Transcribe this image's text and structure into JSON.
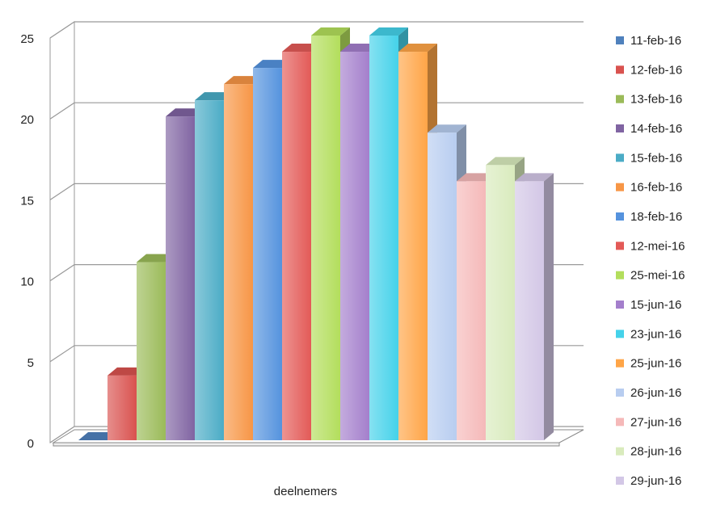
{
  "chart_data": {
    "type": "bar3d",
    "categories": [
      "deelnemers"
    ],
    "ylim": [
      0,
      25
    ],
    "yticks": [
      0,
      5,
      10,
      15,
      20,
      25
    ],
    "grid": true,
    "legend": "right",
    "series": [
      {
        "name": "11-feb-16",
        "color": "#4f81bd",
        "values": [
          0
        ]
      },
      {
        "name": "12-feb-16",
        "color": "#d9524f",
        "values": [
          4
        ]
      },
      {
        "name": "13-feb-16",
        "color": "#9bbb59",
        "values": [
          11
        ]
      },
      {
        "name": "14-feb-16",
        "color": "#8064a2",
        "values": [
          20
        ]
      },
      {
        "name": "15-feb-16",
        "color": "#4bacc6",
        "values": [
          21
        ]
      },
      {
        "name": "16-feb-16",
        "color": "#f79646",
        "values": [
          22
        ]
      },
      {
        "name": "18-feb-16",
        "color": "#5593de",
        "values": [
          23
        ]
      },
      {
        "name": "12-mei-16",
        "color": "#e35a57",
        "values": [
          24
        ]
      },
      {
        "name": "25-mei-16",
        "color": "#b3de5c",
        "values": [
          25
        ]
      },
      {
        "name": "15-jun-16",
        "color": "#a47fcc",
        "values": [
          24
        ]
      },
      {
        "name": "23-jun-16",
        "color": "#45d2ea",
        "values": [
          25
        ]
      },
      {
        "name": "25-jun-16",
        "color": "#ffa547",
        "values": [
          24
        ]
      },
      {
        "name": "26-jun-16",
        "color": "#b8cdf0",
        "values": [
          19
        ]
      },
      {
        "name": "27-jun-16",
        "color": "#f5b9b9",
        "values": [
          16
        ]
      },
      {
        "name": "28-jun-16",
        "color": "#d9ebbd",
        "values": [
          17
        ]
      },
      {
        "name": "29-jun-16",
        "color": "#d3c7e6",
        "values": [
          16
        ]
      }
    ]
  }
}
